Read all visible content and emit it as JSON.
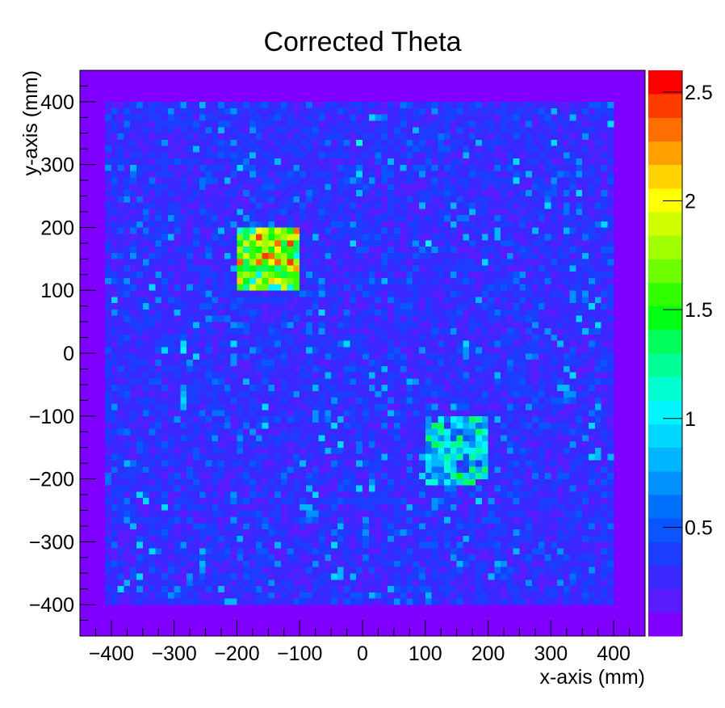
{
  "chart_data": {
    "type": "heatmap",
    "title": "Corrected Theta",
    "xlabel": "x-axis (mm)",
    "ylabel": "y-axis (mm)",
    "xlim": [
      -450,
      450
    ],
    "ylim": [
      -450,
      450
    ],
    "x_ticks": [
      -400,
      -300,
      -200,
      -100,
      0,
      100,
      200,
      300,
      400
    ],
    "x_tick_labels": [
      "−400",
      "−300",
      "−200",
      "−100",
      "0",
      "100",
      "200",
      "300",
      "400"
    ],
    "y_ticks": [
      400,
      300,
      200,
      100,
      0,
      -100,
      -200,
      -300,
      -400
    ],
    "y_tick_labels": [
      "400",
      "300",
      "200",
      "100",
      "0",
      "−100",
      "−200",
      "−300",
      "−400"
    ],
    "bin_width_mm": 10,
    "z_range": [
      0,
      2.6
    ],
    "colorbar_ticks": [
      0.5,
      1,
      1.5,
      2,
      2.5
    ],
    "colorbar_tick_labels": [
      "0.5",
      "1",
      "1.5",
      "2",
      "2.5"
    ],
    "colorbar_colors": [
      "#7f00ff",
      "#5a1cff",
      "#3a28ff",
      "#1c3cff",
      "#0a55ff",
      "#0070ff",
      "#0091ff",
      "#00b4ff",
      "#00d7ff",
      "#00f5ff",
      "#00ffd2",
      "#00ff96",
      "#00ff5a",
      "#00ff14",
      "#32ff00",
      "#6eff00",
      "#a0ff00",
      "#d2ff00",
      "#ffff00",
      "#ffd200",
      "#ffa000",
      "#ff6e00",
      "#ff3c00",
      "#ff0000"
    ],
    "detector_region_mm": {
      "x": [
        -410,
        400
      ],
      "y": [
        -400,
        400
      ],
      "typical_value": 0.3
    },
    "hotspots": [
      {
        "x": [
          -200,
          -100
        ],
        "y": [
          100,
          200
        ],
        "typical_value": 1.55,
        "peak_value": 2.5
      },
      {
        "x": [
          100,
          200
        ],
        "y": [
          -210,
          -100
        ],
        "typical_value": 0.85,
        "peak_value": 1.4
      }
    ],
    "background_value": 0.05
  }
}
